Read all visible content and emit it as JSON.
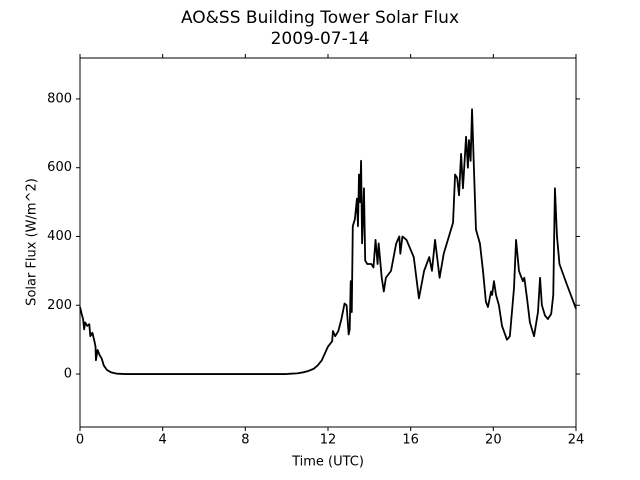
{
  "chart_data": {
    "type": "line",
    "title": "AO&SS Building Tower Solar Flux",
    "subtitle": "2009-07-14",
    "x_label": "Time (UTC)",
    "y_label": "Solar Flux (W/m^2)",
    "xlim": [
      0,
      24
    ],
    "xticks": [
      0,
      4,
      8,
      12,
      16,
      20,
      24
    ],
    "ylim": [
      -154,
      919
    ],
    "yticks": [
      0,
      200,
      400,
      600,
      800
    ],
    "series": [
      {
        "color": "#000000",
        "x": [
          0,
          0.1,
          0.15,
          0.2,
          0.25,
          0.35,
          0.45,
          0.5,
          0.6,
          0.7,
          0.75,
          0.77,
          0.85,
          0.95,
          1.05,
          1.15,
          1.3,
          1.5,
          1.8,
          2.2,
          4,
          8,
          10,
          10.2,
          10.5,
          10.8,
          11.0,
          11.3,
          11.5,
          11.7,
          11.85,
          12.0,
          12.2,
          12.24,
          12.35,
          12.5,
          12.65,
          12.8,
          12.9,
          13.0,
          13.05,
          13.1,
          13.15,
          13.2,
          13.3,
          13.4,
          13.45,
          13.5,
          13.55,
          13.6,
          13.65,
          13.74,
          13.8,
          13.9,
          14.1,
          14.2,
          14.3,
          14.4,
          14.45,
          14.6,
          14.7,
          14.8,
          15.05,
          15.3,
          15.45,
          15.5,
          15.6,
          15.8,
          16.15,
          16.4,
          16.65,
          16.9,
          17.03,
          17.18,
          17.3,
          17.4,
          17.6,
          17.75,
          18.05,
          18.15,
          18.25,
          18.34,
          18.44,
          18.53,
          18.6,
          18.68,
          18.77,
          18.82,
          18.9,
          18.97,
          19.06,
          19.16,
          19.35,
          19.5,
          19.64,
          19.74,
          19.89,
          19.94,
          20.03,
          20.13,
          20.27,
          20.42,
          20.66,
          20.8,
          21.0,
          21.1,
          21.24,
          21.3,
          21.43,
          21.5,
          21.63,
          21.77,
          21.97,
          22.16,
          22.26,
          22.35,
          22.5,
          22.64,
          22.8,
          22.9,
          22.98,
          23.08,
          23.2,
          23.56,
          24.0
        ],
        "values": [
          195,
          170,
          160,
          130,
          150,
          140,
          145,
          110,
          120,
          95,
          80,
          40,
          70,
          55,
          45,
          25,
          12,
          5,
          1,
          0,
          0,
          0,
          0,
          1,
          2,
          5,
          8,
          15,
          25,
          40,
          60,
          80,
          95,
          125,
          110,
          125,
          160,
          205,
          200,
          115,
          130,
          270,
          180,
          430,
          450,
          510,
          430,
          580,
          500,
          620,
          380,
          540,
          330,
          320,
          320,
          310,
          390,
          320,
          380,
          280,
          240,
          280,
          300,
          380,
          400,
          350,
          400,
          390,
          340,
          220,
          300,
          340,
          300,
          390,
          330,
          280,
          350,
          380,
          440,
          580,
          570,
          520,
          640,
          540,
          610,
          690,
          600,
          680,
          620,
          770,
          600,
          420,
          380,
          300,
          210,
          195,
          240,
          230,
          270,
          230,
          200,
          140,
          100,
          110,
          250,
          390,
          300,
          290,
          270,
          280,
          220,
          150,
          110,
          180,
          280,
          200,
          170,
          160,
          175,
          230,
          540,
          400,
          320,
          260,
          190
        ]
      }
    ]
  }
}
